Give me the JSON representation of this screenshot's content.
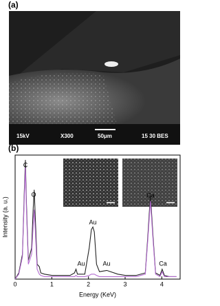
{
  "panels": {
    "a": "(a)",
    "b": "(b)"
  },
  "image": {
    "labels": [
      "15kV",
      "X300",
      "50μm",
      "15 30 BES"
    ]
  },
  "chart_data": {
    "type": "line",
    "xlabel": "Energy (KeV)",
    "ylabel": "Intensity (a. u.)",
    "x": [
      0,
      0.1,
      0.2,
      0.25,
      0.28,
      0.31,
      0.36,
      0.45,
      0.49,
      0.52,
      0.55,
      0.6,
      0.66,
      0.7,
      0.8,
      1.0,
      1.2,
      1.5,
      1.62,
      1.66,
      1.7,
      1.9,
      2.02,
      2.08,
      2.12,
      2.16,
      2.22,
      2.3,
      2.5,
      2.8,
      3.0,
      3.3,
      3.55,
      3.62,
      3.69,
      3.76,
      3.83,
      3.95,
      4.01,
      4.07,
      4.2,
      4.4
    ],
    "series": [
      {
        "color": "#222222",
        "values": [
          0,
          0.5,
          2.0,
          7.0,
          9.6,
          6.0,
          1.5,
          2.5,
          5.5,
          7.2,
          5.0,
          1.2,
          1.0,
          0.5,
          0.4,
          0.3,
          0.3,
          0.3,
          0.5,
          0.8,
          0.4,
          0.4,
          2.5,
          4.0,
          4.2,
          3.8,
          1.2,
          0.6,
          0.7,
          0.4,
          0.3,
          0.3,
          0.5,
          3.5,
          6.8,
          3.5,
          0.5,
          0.3,
          0.8,
          0.3,
          0.2,
          0.2
        ]
      },
      {
        "color": "#b36ad0",
        "values": [
          0,
          0.4,
          1.8,
          6.5,
          9.0,
          5.5,
          1.2,
          2.0,
          4.2,
          5.6,
          4.0,
          0.8,
          0.4,
          0.3,
          0.2,
          0.2,
          0.2,
          0.2,
          0.2,
          0.3,
          0.2,
          0.2,
          0.3,
          0.4,
          0.4,
          0.4,
          0.3,
          0.2,
          0.2,
          0.2,
          0.2,
          0.2,
          0.4,
          3.2,
          6.3,
          3.2,
          0.4,
          0.2,
          0.6,
          0.2,
          0.2,
          0.2
        ]
      }
    ],
    "xlim": [
      0,
      4.5
    ],
    "xticks": [
      0,
      1,
      2,
      3,
      4
    ],
    "ylim": [
      0,
      10
    ],
    "annotations": [
      "C",
      "O",
      "Au",
      "Au",
      "Au",
      "Ca",
      "Ca"
    ]
  }
}
